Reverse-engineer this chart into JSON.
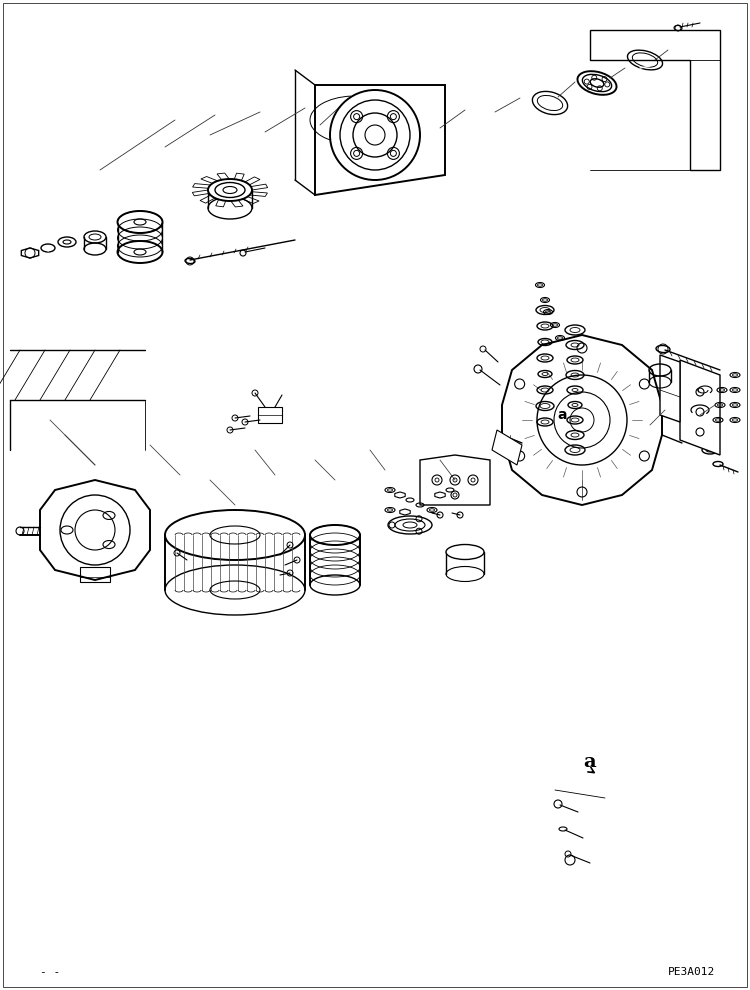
{
  "fig_width": 7.5,
  "fig_height": 9.9,
  "dpi": 100,
  "bg_color": "#ffffff",
  "border_color": "#000000",
  "bottom_left_text": "- -",
  "bottom_right_text": "PE3A012",
  "detail_label": "a"
}
